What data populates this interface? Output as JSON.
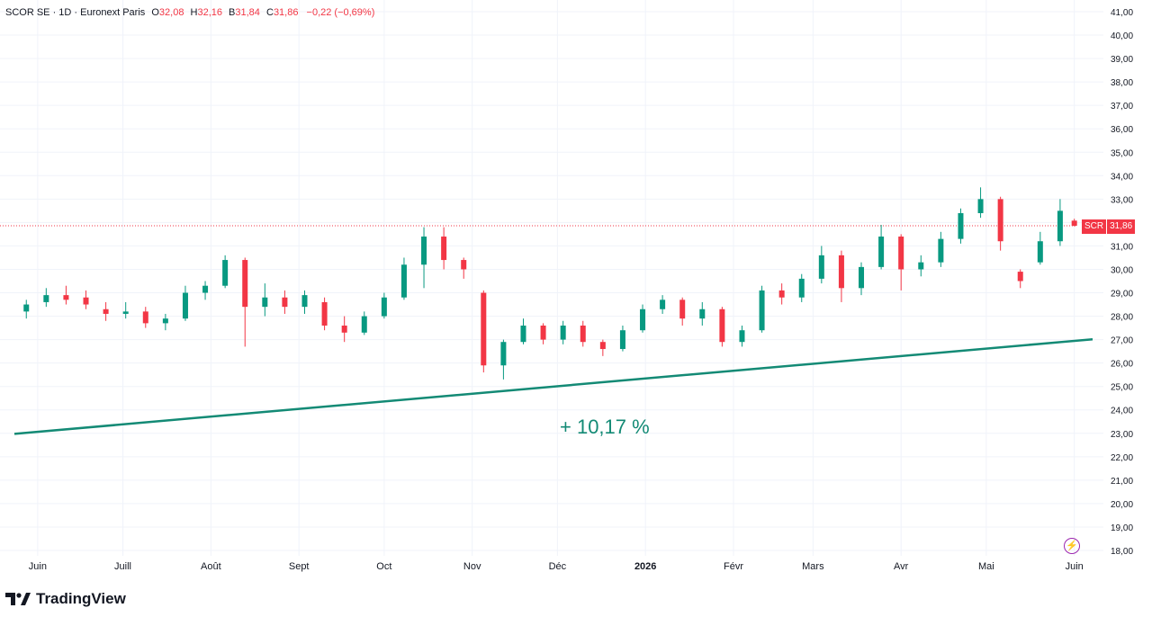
{
  "header": {
    "symbol_label": "SCOR SE · 1D · Euronext Paris",
    "o_key": "O",
    "o_val": "32,08",
    "h_key": "H",
    "h_val": "32,16",
    "b_key": "B",
    "b_val": "31,84",
    "c_key": "C",
    "c_val": "31,86",
    "change": "−0,22 (−0,69%)"
  },
  "price_tag": {
    "symbol": "SCR",
    "price": "31,86"
  },
  "annotation": {
    "trend_label": "+ 10,17 %"
  },
  "brand": {
    "name": "TradingView"
  },
  "icons": {
    "logo": "tradingview-logo-icon",
    "flash": "lightning-icon"
  },
  "colors": {
    "up": "#089981",
    "down": "#f23645",
    "trendline": "#138a75",
    "grid": "#f0f3fa"
  },
  "chart_data": {
    "type": "candlestick",
    "symbol": "SCOR SE",
    "interval": "1D",
    "exchange": "Euronext Paris",
    "y_axis": {
      "min": 18,
      "max": 41,
      "step": 1,
      "ticks": [
        "41,00",
        "40,00",
        "39,00",
        "38,00",
        "37,00",
        "36,00",
        "35,00",
        "34,00",
        "33,00",
        "32,00",
        "31,00",
        "30,00",
        "29,00",
        "28,00",
        "27,00",
        "26,00",
        "25,00",
        "24,00",
        "23,00",
        "22,00",
        "21,00",
        "20,00",
        "19,00",
        "18,00"
      ]
    },
    "x_axis": {
      "ticks": [
        "Juin",
        "Juill",
        "Août",
        "Sept",
        "Oct",
        "Nov",
        "Déc",
        "2026",
        "Févr",
        "Mars",
        "Avr",
        "Mai",
        "Juin"
      ]
    },
    "last_price": 31.86,
    "trendline": {
      "start": 23.0,
      "end": 27.0
    },
    "series": [
      {
        "d": "2025-05-28",
        "o": 28.2,
        "h": 28.7,
        "l": 27.9,
        "c": 28.5
      },
      {
        "d": "2025-06-04",
        "o": 28.6,
        "h": 29.2,
        "l": 28.4,
        "c": 28.9
      },
      {
        "d": "2025-06-11",
        "o": 28.9,
        "h": 29.3,
        "l": 28.5,
        "c": 28.7
      },
      {
        "d": "2025-06-18",
        "o": 28.8,
        "h": 29.1,
        "l": 28.3,
        "c": 28.5
      },
      {
        "d": "2025-06-25",
        "o": 28.3,
        "h": 28.6,
        "l": 27.8,
        "c": 28.1
      },
      {
        "d": "2025-07-02",
        "o": 28.1,
        "h": 28.6,
        "l": 27.9,
        "c": 28.2
      },
      {
        "d": "2025-07-09",
        "o": 28.2,
        "h": 28.4,
        "l": 27.5,
        "c": 27.7
      },
      {
        "d": "2025-07-16",
        "o": 27.7,
        "h": 28.1,
        "l": 27.4,
        "c": 27.9
      },
      {
        "d": "2025-07-23",
        "o": 27.9,
        "h": 29.3,
        "l": 27.8,
        "c": 29.0
      },
      {
        "d": "2025-07-30",
        "o": 29.0,
        "h": 29.5,
        "l": 28.7,
        "c": 29.3
      },
      {
        "d": "2025-08-06",
        "o": 29.3,
        "h": 30.6,
        "l": 29.2,
        "c": 30.4
      },
      {
        "d": "2025-08-13",
        "o": 30.4,
        "h": 30.5,
        "l": 26.7,
        "c": 28.4
      },
      {
        "d": "2025-08-20",
        "o": 28.4,
        "h": 29.4,
        "l": 28.0,
        "c": 28.8
      },
      {
        "d": "2025-08-27",
        "o": 28.8,
        "h": 29.1,
        "l": 28.1,
        "c": 28.4
      },
      {
        "d": "2025-09-03",
        "o": 28.4,
        "h": 29.1,
        "l": 28.1,
        "c": 28.9
      },
      {
        "d": "2025-09-10",
        "o": 28.6,
        "h": 28.8,
        "l": 27.4,
        "c": 27.6
      },
      {
        "d": "2025-09-17",
        "o": 27.6,
        "h": 28.0,
        "l": 26.9,
        "c": 27.3
      },
      {
        "d": "2025-09-24",
        "o": 27.3,
        "h": 28.2,
        "l": 27.2,
        "c": 28.0
      },
      {
        "d": "2025-10-01",
        "o": 28.0,
        "h": 29.0,
        "l": 27.9,
        "c": 28.8
      },
      {
        "d": "2025-10-08",
        "o": 28.8,
        "h": 30.5,
        "l": 28.7,
        "c": 30.2
      },
      {
        "d": "2025-10-15",
        "o": 30.2,
        "h": 31.8,
        "l": 29.2,
        "c": 31.4
      },
      {
        "d": "2025-10-22",
        "o": 31.4,
        "h": 31.8,
        "l": 30.0,
        "c": 30.4
      },
      {
        "d": "2025-10-29",
        "o": 30.4,
        "h": 30.5,
        "l": 29.6,
        "c": 30.0
      },
      {
        "d": "2025-11-05",
        "o": 29.0,
        "h": 29.1,
        "l": 25.6,
        "c": 25.9
      },
      {
        "d": "2025-11-12",
        "o": 25.9,
        "h": 27.0,
        "l": 25.3,
        "c": 26.9
      },
      {
        "d": "2025-11-19",
        "o": 26.9,
        "h": 27.9,
        "l": 26.8,
        "c": 27.6
      },
      {
        "d": "2025-11-26",
        "o": 27.6,
        "h": 27.7,
        "l": 26.8,
        "c": 27.0
      },
      {
        "d": "2025-12-03",
        "o": 27.0,
        "h": 27.8,
        "l": 26.8,
        "c": 27.6
      },
      {
        "d": "2025-12-10",
        "o": 27.6,
        "h": 27.8,
        "l": 26.7,
        "c": 26.9
      },
      {
        "d": "2025-12-17",
        "o": 26.9,
        "h": 27.0,
        "l": 26.3,
        "c": 26.6
      },
      {
        "d": "2025-12-24",
        "o": 26.6,
        "h": 27.6,
        "l": 26.5,
        "c": 27.4
      },
      {
        "d": "2025-12-31",
        "o": 27.4,
        "h": 28.5,
        "l": 27.3,
        "c": 28.3
      },
      {
        "d": "2026-01-07",
        "o": 28.3,
        "h": 28.9,
        "l": 28.1,
        "c": 28.7
      },
      {
        "d": "2026-01-14",
        "o": 28.7,
        "h": 28.8,
        "l": 27.6,
        "c": 27.9
      },
      {
        "d": "2026-01-21",
        "o": 27.9,
        "h": 28.6,
        "l": 27.6,
        "c": 28.3
      },
      {
        "d": "2026-01-28",
        "o": 28.3,
        "h": 28.4,
        "l": 26.7,
        "c": 26.9
      },
      {
        "d": "2026-02-04",
        "o": 26.9,
        "h": 27.6,
        "l": 26.7,
        "c": 27.4
      },
      {
        "d": "2026-02-11",
        "o": 27.4,
        "h": 29.3,
        "l": 27.3,
        "c": 29.1
      },
      {
        "d": "2026-02-18",
        "o": 29.1,
        "h": 29.4,
        "l": 28.5,
        "c": 28.8
      },
      {
        "d": "2026-02-25",
        "o": 28.8,
        "h": 29.8,
        "l": 28.6,
        "c": 29.6
      },
      {
        "d": "2026-03-04",
        "o": 29.6,
        "h": 31.0,
        "l": 29.4,
        "c": 30.6
      },
      {
        "d": "2026-03-11",
        "o": 30.6,
        "h": 30.8,
        "l": 28.6,
        "c": 29.2
      },
      {
        "d": "2026-03-18",
        "o": 29.2,
        "h": 30.3,
        "l": 28.9,
        "c": 30.1
      },
      {
        "d": "2026-03-25",
        "o": 30.1,
        "h": 31.9,
        "l": 30.0,
        "c": 31.4
      },
      {
        "d": "2026-04-01",
        "o": 31.4,
        "h": 31.5,
        "l": 29.1,
        "c": 30.0
      },
      {
        "d": "2026-04-08",
        "o": 30.0,
        "h": 30.6,
        "l": 29.7,
        "c": 30.3
      },
      {
        "d": "2026-04-15",
        "o": 30.3,
        "h": 31.6,
        "l": 30.1,
        "c": 31.3
      },
      {
        "d": "2026-04-22",
        "o": 31.3,
        "h": 32.6,
        "l": 31.1,
        "c": 32.4
      },
      {
        "d": "2026-04-29",
        "o": 32.4,
        "h": 33.5,
        "l": 32.2,
        "c": 33.0
      },
      {
        "d": "2026-05-06",
        "o": 33.0,
        "h": 33.1,
        "l": 30.8,
        "c": 31.2
      },
      {
        "d": "2026-05-13",
        "o": 29.9,
        "h": 30.0,
        "l": 29.2,
        "c": 29.5
      },
      {
        "d": "2026-05-20",
        "o": 30.3,
        "h": 31.6,
        "l": 30.2,
        "c": 31.2
      },
      {
        "d": "2026-05-27",
        "o": 31.2,
        "h": 33.0,
        "l": 31.0,
        "c": 32.5
      },
      {
        "d": "2026-06-01",
        "o": 32.08,
        "h": 32.16,
        "l": 31.84,
        "c": 31.86
      }
    ]
  }
}
